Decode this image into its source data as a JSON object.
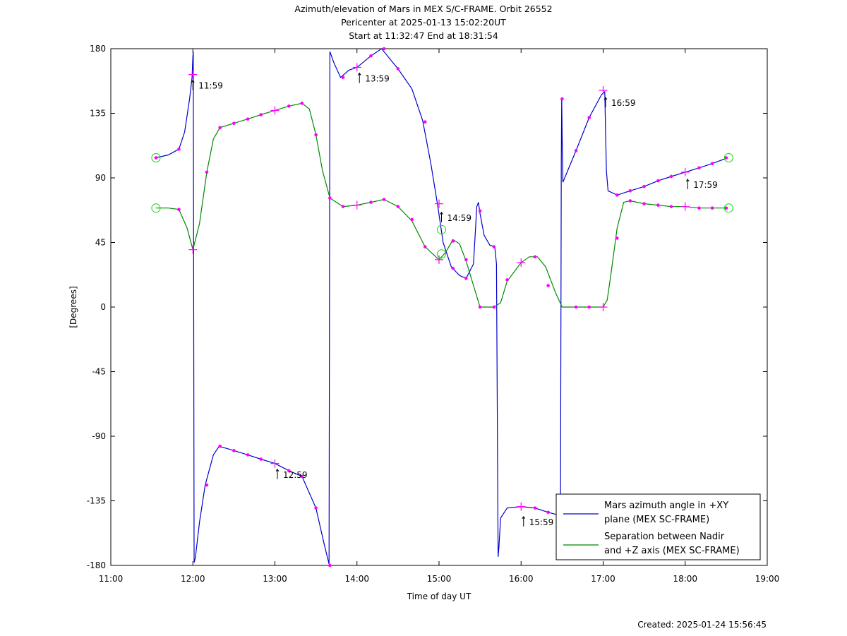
{
  "chart_data": {
    "type": "line",
    "title": [
      "Azimuth/elevation of Mars in MEX S/C-FRAME.  Orbit 26552",
      "Pericenter at 2025-01-13 15:02:20UT",
      "Start at 11:32:47 End at 18:31:54"
    ],
    "xlabel": "Time of day UT",
    "ylabel": "[Degrees]",
    "footer": "Created: 2025-01-24 15:56:45",
    "xlim": [
      11.0,
      19.0
    ],
    "ylim": [
      -180,
      180
    ],
    "x_ticks": [
      11,
      12,
      13,
      14,
      15,
      16,
      17,
      18,
      19
    ],
    "x_tick_labels": [
      "11:00",
      "12:00",
      "13:00",
      "14:00",
      "15:00",
      "16:00",
      "17:00",
      "18:00",
      "19:00"
    ],
    "y_ticks": [
      180,
      135,
      90,
      45,
      0,
      -45,
      -90,
      -135,
      -180
    ],
    "y_tick_labels": [
      "180",
      "135",
      "90",
      "45",
      "0",
      "-45",
      "-90",
      "-135",
      "-180"
    ],
    "grid": false,
    "legend_position": "bottom-right",
    "series": [
      {
        "name": "Mars azimuth angle in +XY plane (MEX SC-FRAME)",
        "legend_lines": [
          "Mars azimuth angle in +XY",
          "plane (MEX SC-FRAME)"
        ],
        "color": "#0000cc",
        "points": [
          [
            11.55,
            104
          ],
          [
            11.7,
            106
          ],
          [
            11.83,
            110
          ],
          [
            11.9,
            122
          ],
          [
            11.96,
            145
          ],
          [
            11.99,
            160
          ],
          [
            12.0,
            175
          ],
          [
            12.005,
            178
          ],
          [
            12.01,
            10
          ],
          [
            12.015,
            -178
          ],
          [
            12.03,
            -175
          ],
          [
            12.08,
            -150
          ],
          [
            12.15,
            -124
          ],
          [
            12.25,
            -103
          ],
          [
            12.32,
            -97
          ],
          [
            12.5,
            -100
          ],
          [
            12.67,
            -103
          ],
          [
            12.83,
            -106
          ],
          [
            13.0,
            -109
          ],
          [
            13.17,
            -114
          ],
          [
            13.33,
            -118
          ],
          [
            13.5,
            -140
          ],
          [
            13.6,
            -165
          ],
          [
            13.66,
            -179
          ],
          [
            13.665,
            0
          ],
          [
            13.67,
            178
          ],
          [
            13.72,
            170
          ],
          [
            13.8,
            160
          ],
          [
            13.9,
            165
          ],
          [
            14.0,
            167
          ],
          [
            14.17,
            175
          ],
          [
            14.3,
            180
          ],
          [
            14.5,
            166
          ],
          [
            14.67,
            152
          ],
          [
            14.8,
            130
          ],
          [
            14.9,
            100
          ],
          [
            14.98,
            72
          ],
          [
            15.05,
            45
          ],
          [
            15.15,
            28
          ],
          [
            15.25,
            22
          ],
          [
            15.33,
            20
          ],
          [
            15.42,
            30
          ],
          [
            15.46,
            70
          ],
          [
            15.48,
            73
          ],
          [
            15.5,
            65
          ],
          [
            15.55,
            50
          ],
          [
            15.62,
            43
          ],
          [
            15.68,
            42
          ],
          [
            15.7,
            30
          ],
          [
            15.72,
            -174
          ],
          [
            15.73,
            -167
          ],
          [
            15.75,
            -147
          ],
          [
            15.83,
            -140
          ],
          [
            16.0,
            -139
          ],
          [
            16.17,
            -140
          ],
          [
            16.33,
            -143
          ],
          [
            16.46,
            -145
          ],
          [
            16.48,
            -140
          ],
          [
            16.49,
            100
          ],
          [
            16.495,
            146
          ],
          [
            16.5,
            120
          ],
          [
            16.51,
            87
          ],
          [
            16.67,
            109
          ],
          [
            16.83,
            132
          ],
          [
            16.98,
            148
          ],
          [
            17.02,
            150
          ],
          [
            17.04,
            95
          ],
          [
            17.06,
            81
          ],
          [
            17.17,
            78
          ],
          [
            17.33,
            81
          ],
          [
            17.5,
            84
          ],
          [
            17.67,
            88
          ],
          [
            17.83,
            91
          ],
          [
            18.0,
            94
          ],
          [
            18.17,
            97
          ],
          [
            18.33,
            100
          ],
          [
            18.52,
            104
          ]
        ],
        "markers_dot": [
          [
            11.55,
            104
          ],
          [
            11.83,
            110
          ],
          [
            12.17,
            -124
          ],
          [
            12.33,
            -97
          ],
          [
            12.5,
            -100
          ],
          [
            12.67,
            -103
          ],
          [
            12.83,
            -106
          ],
          [
            13.17,
            -114
          ],
          [
            13.33,
            -118
          ],
          [
            13.5,
            -140
          ],
          [
            13.67,
            -180
          ],
          [
            13.83,
            160
          ],
          [
            14.17,
            175
          ],
          [
            14.33,
            180
          ],
          [
            14.5,
            166
          ],
          [
            14.83,
            129
          ],
          [
            15.17,
            27
          ],
          [
            15.33,
            20
          ],
          [
            15.5,
            67
          ],
          [
            15.67,
            42
          ],
          [
            16.17,
            -140
          ],
          [
            16.33,
            -143
          ],
          [
            16.5,
            145
          ],
          [
            16.67,
            109
          ],
          [
            16.83,
            132
          ],
          [
            17.17,
            78
          ],
          [
            17.33,
            81
          ],
          [
            17.5,
            84
          ],
          [
            17.67,
            88
          ],
          [
            17.83,
            91
          ],
          [
            18.17,
            97
          ],
          [
            18.33,
            100
          ],
          [
            18.5,
            104
          ]
        ],
        "markers_cross": [
          [
            12.0,
            162
          ],
          [
            13.0,
            -109
          ],
          [
            14.0,
            167
          ],
          [
            15.0,
            72
          ],
          [
            16.0,
            -139
          ],
          [
            17.0,
            151
          ],
          [
            18.0,
            94
          ]
        ],
        "markers_circle": [
          [
            11.55,
            104
          ],
          [
            18.53,
            104
          ]
        ]
      },
      {
        "name": "Separation between Nadir and +Z axis (MEX SC-FRAME)",
        "legend_lines": [
          "Separation between Nadir",
          "and +Z axis (MEX SC-FRAME)"
        ],
        "color": "#008800",
        "points": [
          [
            11.55,
            69
          ],
          [
            11.7,
            69
          ],
          [
            11.83,
            68
          ],
          [
            11.93,
            55
          ],
          [
            12.0,
            40
          ],
          [
            12.08,
            58
          ],
          [
            12.17,
            94
          ],
          [
            12.25,
            117
          ],
          [
            12.33,
            125
          ],
          [
            12.5,
            128
          ],
          [
            12.67,
            131
          ],
          [
            12.83,
            134
          ],
          [
            13.0,
            137
          ],
          [
            13.17,
            140
          ],
          [
            13.33,
            142
          ],
          [
            13.42,
            138
          ],
          [
            13.5,
            120
          ],
          [
            13.58,
            95
          ],
          [
            13.67,
            76
          ],
          [
            13.83,
            70
          ],
          [
            14.0,
            71
          ],
          [
            14.17,
            73
          ],
          [
            14.33,
            75
          ],
          [
            14.5,
            70
          ],
          [
            14.67,
            60
          ],
          [
            14.83,
            42
          ],
          [
            15.0,
            33
          ],
          [
            15.08,
            38
          ],
          [
            15.17,
            47
          ],
          [
            15.25,
            44
          ],
          [
            15.33,
            32
          ],
          [
            15.42,
            15
          ],
          [
            15.5,
            0
          ],
          [
            15.67,
            0
          ],
          [
            15.75,
            3
          ],
          [
            15.83,
            18
          ],
          [
            16.0,
            31
          ],
          [
            16.1,
            35
          ],
          [
            16.2,
            35
          ],
          [
            16.3,
            28
          ],
          [
            16.42,
            10
          ],
          [
            16.5,
            0
          ],
          [
            16.67,
            0
          ],
          [
            17.0,
            0
          ],
          [
            17.05,
            5
          ],
          [
            17.1,
            25
          ],
          [
            17.17,
            55
          ],
          [
            17.25,
            73
          ],
          [
            17.33,
            74
          ],
          [
            17.5,
            72
          ],
          [
            17.67,
            71
          ],
          [
            17.83,
            70
          ],
          [
            18.0,
            70
          ],
          [
            18.17,
            69
          ],
          [
            18.33,
            69
          ],
          [
            18.52,
            69
          ]
        ],
        "markers_dot": [
          [
            11.83,
            68
          ],
          [
            12.17,
            94
          ],
          [
            12.33,
            125
          ],
          [
            12.5,
            128
          ],
          [
            12.67,
            131
          ],
          [
            12.83,
            134
          ],
          [
            13.17,
            140
          ],
          [
            13.33,
            142
          ],
          [
            13.5,
            120
          ],
          [
            13.67,
            76
          ],
          [
            13.83,
            70
          ],
          [
            14.17,
            73
          ],
          [
            14.33,
            75
          ],
          [
            14.5,
            70
          ],
          [
            14.67,
            61
          ],
          [
            14.83,
            42
          ],
          [
            15.17,
            46
          ],
          [
            15.33,
            33
          ],
          [
            15.5,
            0
          ],
          [
            15.67,
            0
          ],
          [
            15.83,
            19
          ],
          [
            16.17,
            35
          ],
          [
            16.33,
            15
          ],
          [
            16.67,
            0
          ],
          [
            16.83,
            0
          ],
          [
            17.17,
            48
          ],
          [
            17.33,
            74
          ],
          [
            17.5,
            72
          ],
          [
            17.67,
            71
          ],
          [
            17.83,
            70
          ],
          [
            18.17,
            69
          ],
          [
            18.33,
            69
          ],
          [
            18.5,
            69
          ]
        ],
        "markers_cross": [
          [
            12.0,
            40
          ],
          [
            13.0,
            137
          ],
          [
            14.0,
            71
          ],
          [
            15.0,
            33
          ],
          [
            16.0,
            31
          ],
          [
            17.0,
            0
          ],
          [
            18.0,
            70
          ]
        ],
        "markers_circle": [
          [
            11.55,
            69
          ],
          [
            18.53,
            69
          ],
          [
            15.03,
            54
          ],
          [
            15.03,
            37
          ]
        ]
      }
    ],
    "annotations": [
      {
        "x": 12.0,
        "y": 158,
        "text": "11:59"
      },
      {
        "x": 13.03,
        "y": -113,
        "text": "12:59"
      },
      {
        "x": 14.03,
        "y": 163,
        "text": "13:59"
      },
      {
        "x": 15.03,
        "y": 66,
        "text": "14:59"
      },
      {
        "x": 16.03,
        "y": -146,
        "text": "15:59"
      },
      {
        "x": 17.03,
        "y": 146,
        "text": "16:59"
      },
      {
        "x": 18.03,
        "y": 89,
        "text": "17:59"
      }
    ],
    "marker_colors": {
      "dot": "#ff00ff",
      "cross": "#ff00ff",
      "circle": "#00dd00"
    }
  }
}
